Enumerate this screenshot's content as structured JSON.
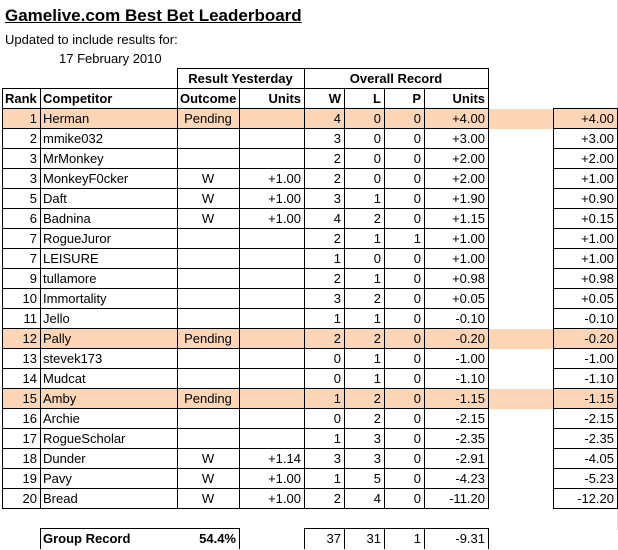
{
  "title": "Gamelive.com Best Bet Leaderboard",
  "subtitle": "Updated to include results for:",
  "date": "17 February 2010",
  "header": {
    "result_yesterday": "Result Yesterday",
    "overall_record": "Overall Record",
    "rank": "Rank",
    "competitor": "Competitor",
    "outcome": "Outcome",
    "units": "Units",
    "w": "W",
    "l": "L",
    "p": "P",
    "overall_units": "Units"
  },
  "highlight_color": "#fbd5b5",
  "rows": [
    {
      "rank": "1",
      "competitor": "Herman",
      "outcome": "Pending",
      "units": "",
      "w": "4",
      "l": "0",
      "p": "0",
      "total": "+4.00",
      "prev": "+4.00",
      "highlight": true
    },
    {
      "rank": "2",
      "competitor": "mmike032",
      "outcome": "",
      "units": "",
      "w": "3",
      "l": "0",
      "p": "0",
      "total": "+3.00",
      "prev": "+3.00",
      "highlight": false
    },
    {
      "rank": "3",
      "competitor": "MrMonkey",
      "outcome": "",
      "units": "",
      "w": "2",
      "l": "0",
      "p": "0",
      "total": "+2.00",
      "prev": "+2.00",
      "highlight": false
    },
    {
      "rank": "3",
      "competitor": "MonkeyF0cker",
      "outcome": "W",
      "units": "+1.00",
      "w": "2",
      "l": "0",
      "p": "0",
      "total": "+2.00",
      "prev": "+1.00",
      "highlight": false
    },
    {
      "rank": "5",
      "competitor": "Daft",
      "outcome": "W",
      "units": "+1.00",
      "w": "3",
      "l": "1",
      "p": "0",
      "total": "+1.90",
      "prev": "+0.90",
      "highlight": false
    },
    {
      "rank": "6",
      "competitor": "Badnina",
      "outcome": "W",
      "units": "+1.00",
      "w": "4",
      "l": "2",
      "p": "0",
      "total": "+1.15",
      "prev": "+0.15",
      "highlight": false
    },
    {
      "rank": "7",
      "competitor": "RogueJuror",
      "outcome": "",
      "units": "",
      "w": "2",
      "l": "1",
      "p": "1",
      "total": "+1.00",
      "prev": "+1.00",
      "highlight": false
    },
    {
      "rank": "7",
      "competitor": "LEISURE",
      "outcome": "",
      "units": "",
      "w": "1",
      "l": "0",
      "p": "0",
      "total": "+1.00",
      "prev": "+1.00",
      "highlight": false
    },
    {
      "rank": "9",
      "competitor": "tullamore",
      "outcome": "",
      "units": "",
      "w": "2",
      "l": "1",
      "p": "0",
      "total": "+0.98",
      "prev": "+0.98",
      "highlight": false
    },
    {
      "rank": "10",
      "competitor": "Immortality",
      "outcome": "",
      "units": "",
      "w": "3",
      "l": "2",
      "p": "0",
      "total": "+0.05",
      "prev": "+0.05",
      "highlight": false
    },
    {
      "rank": "11",
      "competitor": "Jello",
      "outcome": "",
      "units": "",
      "w": "1",
      "l": "1",
      "p": "0",
      "total": "-0.10",
      "prev": "-0.10",
      "highlight": false
    },
    {
      "rank": "12",
      "competitor": "Pally",
      "outcome": "Pending",
      "units": "",
      "w": "2",
      "l": "2",
      "p": "0",
      "total": "-0.20",
      "prev": "-0.20",
      "highlight": true
    },
    {
      "rank": "13",
      "competitor": "stevek173",
      "outcome": "",
      "units": "",
      "w": "0",
      "l": "1",
      "p": "0",
      "total": "-1.00",
      "prev": "-1.00",
      "highlight": false
    },
    {
      "rank": "14",
      "competitor": "Mudcat",
      "outcome": "",
      "units": "",
      "w": "0",
      "l": "1",
      "p": "0",
      "total": "-1.10",
      "prev": "-1.10",
      "highlight": false
    },
    {
      "rank": "15",
      "competitor": "Amby",
      "outcome": "Pending",
      "units": "",
      "w": "1",
      "l": "2",
      "p": "0",
      "total": "-1.15",
      "prev": "-1.15",
      "highlight": true
    },
    {
      "rank": "16",
      "competitor": "Archie",
      "outcome": "",
      "units": "",
      "w": "0",
      "l": "2",
      "p": "0",
      "total": "-2.15",
      "prev": "-2.15",
      "highlight": false
    },
    {
      "rank": "17",
      "competitor": "RogueScholar",
      "outcome": "",
      "units": "",
      "w": "1",
      "l": "3",
      "p": "0",
      "total": "-2.35",
      "prev": "-2.35",
      "highlight": false
    },
    {
      "rank": "18",
      "competitor": "Dunder",
      "outcome": "W",
      "units": "+1.14",
      "w": "3",
      "l": "3",
      "p": "0",
      "total": "-2.91",
      "prev": "-4.05",
      "highlight": false
    },
    {
      "rank": "19",
      "competitor": "Pavy",
      "outcome": "W",
      "units": "+1.00",
      "w": "1",
      "l": "5",
      "p": "0",
      "total": "-4.23",
      "prev": "-5.23",
      "highlight": false
    },
    {
      "rank": "20",
      "competitor": "Bread",
      "outcome": "W",
      "units": "+1.00",
      "w": "2",
      "l": "4",
      "p": "0",
      "total": "-11.20",
      "prev": "-12.20",
      "highlight": false
    }
  ],
  "group": {
    "label": "Group Record",
    "pct": "54.4%",
    "w": "37",
    "l": "31",
    "p": "1",
    "total": "-9.31"
  }
}
